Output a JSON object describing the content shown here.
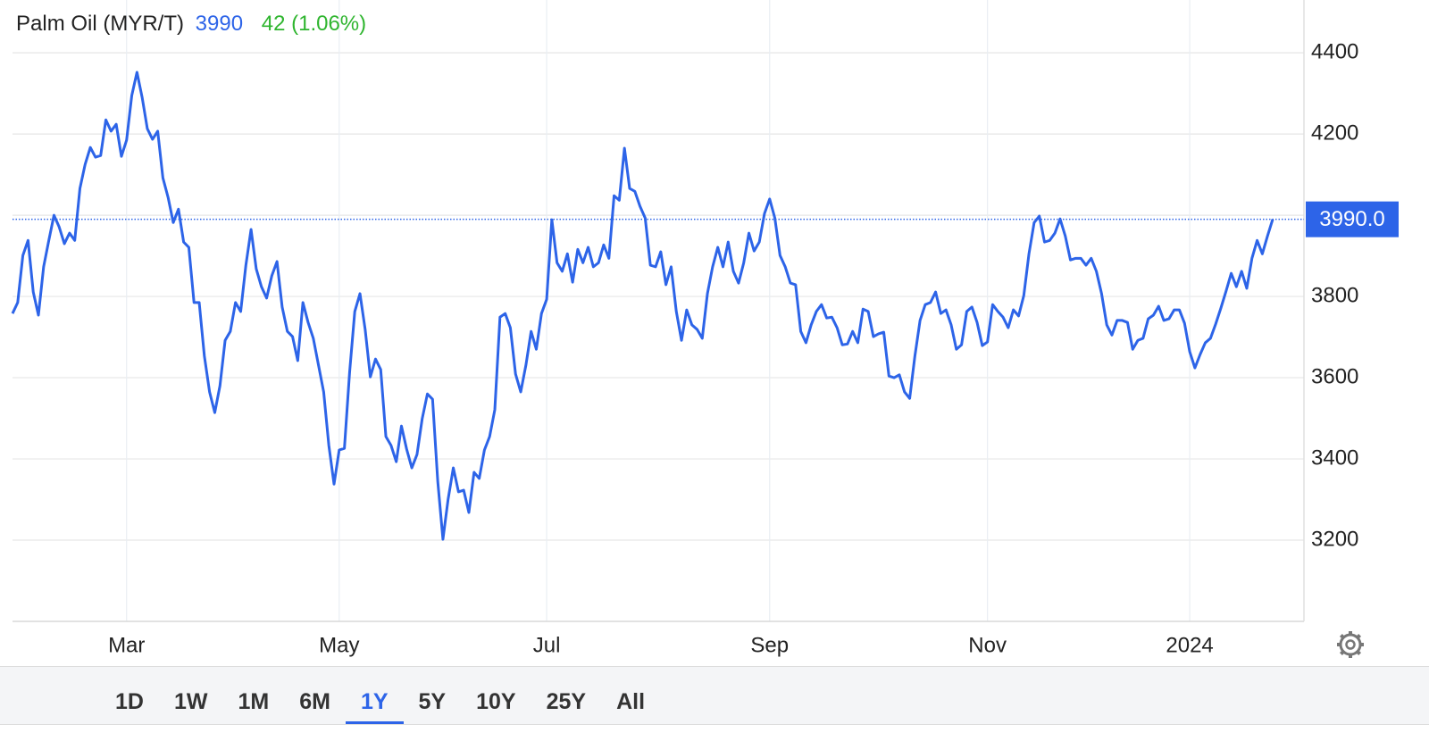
{
  "chart_data": {
    "type": "line",
    "title": "Palm Oil (MYR/T)",
    "price": "3990",
    "change": "42 (1.06%)",
    "color": "#2d64e8",
    "change_color": "#2fb52f",
    "grid": true,
    "ylim": [
      3000,
      4530
    ],
    "yticks": [
      3200,
      3400,
      3600,
      3800,
      4000,
      4200,
      4400
    ],
    "last_value": {
      "value": 3990,
      "label": "3990.0"
    },
    "categories": [
      null,
      null,
      null,
      null,
      null,
      null,
      null,
      null,
      null,
      null,
      null,
      null,
      null,
      null,
      null,
      null,
      null,
      null,
      null,
      null,
      null,
      null,
      "Mar",
      null,
      null,
      null,
      null,
      null,
      null,
      null,
      null,
      null,
      null,
      null,
      null,
      null,
      null,
      null,
      null,
      null,
      null,
      null,
      null,
      null,
      null,
      null,
      null,
      null,
      null,
      null,
      null,
      null,
      null,
      null,
      null,
      null,
      null,
      null,
      null,
      null,
      null,
      null,
      null,
      "May",
      null,
      null,
      null,
      null,
      null,
      null,
      null,
      null,
      null,
      null,
      null,
      null,
      null,
      null,
      null,
      null,
      null,
      null,
      null,
      null,
      null,
      null,
      null,
      null,
      null,
      null,
      null,
      null,
      null,
      null,
      null,
      null,
      null,
      null,
      null,
      null,
      null,
      null,
      null,
      "Jul",
      null,
      null,
      null,
      null,
      null,
      null,
      null,
      null,
      null,
      null,
      null,
      null,
      null,
      null,
      null,
      null,
      null,
      null,
      null,
      null,
      null,
      null,
      null,
      null,
      null,
      null,
      null,
      null,
      null,
      null,
      null,
      null,
      null,
      null,
      null,
      null,
      null,
      null,
      null,
      null,
      null,
      null,
      "Sep",
      null,
      null,
      null,
      null,
      null,
      null,
      null,
      null,
      null,
      null,
      null,
      null,
      null,
      null,
      null,
      null,
      null,
      null,
      null,
      null,
      null,
      null,
      null,
      null,
      null,
      null,
      null,
      null,
      null,
      null,
      null,
      null,
      null,
      null,
      null,
      null,
      null,
      null,
      null,
      null,
      null,
      "Nov",
      null,
      null,
      null,
      null,
      null,
      null,
      null,
      null,
      null,
      null,
      null,
      null,
      null,
      null,
      null,
      null,
      null,
      null,
      null,
      null,
      null,
      null,
      null,
      null,
      null,
      null,
      null,
      null,
      null,
      null,
      null,
      null,
      null,
      null,
      null,
      null,
      null,
      null,
      "2024",
      null,
      null,
      null,
      null,
      null,
      null,
      null,
      null,
      null,
      null,
      null,
      null,
      null,
      null,
      null,
      null
    ],
    "values": [
      3758,
      3785,
      3901,
      3938,
      3811,
      3754,
      3873,
      3938,
      4000,
      3971,
      3930,
      3956,
      3938,
      4066,
      4125,
      4167,
      4143,
      4147,
      4235,
      4207,
      4224,
      4145,
      4185,
      4295,
      4352,
      4290,
      4213,
      4187,
      4207,
      4092,
      4044,
      3982,
      4015,
      3934,
      3921,
      3785,
      3785,
      3653,
      3565,
      3514,
      3580,
      3692,
      3714,
      3785,
      3763,
      3877,
      3965,
      3868,
      3824,
      3796,
      3851,
      3886,
      3774,
      3714,
      3701,
      3642,
      3785,
      3736,
      3697,
      3631,
      3565,
      3433,
      3338,
      3422,
      3426,
      3613,
      3763,
      3807,
      3719,
      3602,
      3646,
      3620,
      3455,
      3433,
      3393,
      3481,
      3424,
      3378,
      3411,
      3499,
      3560,
      3547,
      3345,
      3202,
      3301,
      3378,
      3319,
      3323,
      3268,
      3367,
      3352,
      3422,
      3455,
      3521,
      3749,
      3758,
      3723,
      3609,
      3565,
      3631,
      3714,
      3670,
      3758,
      3793,
      3989,
      3883,
      3862,
      3905,
      3835,
      3916,
      3883,
      3921,
      3873,
      3883,
      3927,
      3894,
      4048,
      4037,
      4165,
      4066,
      4059,
      4022,
      3993,
      3877,
      3873,
      3910,
      3829,
      3873,
      3763,
      3692,
      3767,
      3730,
      3719,
      3697,
      3807,
      3873,
      3921,
      3873,
      3934,
      3862,
      3833,
      3883,
      3956,
      3912,
      3934,
      4004,
      4040,
      3993,
      3901,
      3873,
      3833,
      3829,
      3714,
      3686,
      3730,
      3763,
      3780,
      3747,
      3749,
      3723,
      3681,
      3683,
      3714,
      3686,
      3769,
      3763,
      3701,
      3708,
      3712,
      3604,
      3600,
      3607,
      3565,
      3549,
      3653,
      3741,
      3780,
      3785,
      3811,
      3758,
      3767,
      3730,
      3670,
      3681,
      3763,
      3774,
      3736,
      3679,
      3688,
      3780,
      3763,
      3749,
      3723,
      3767,
      3752,
      3802,
      3905,
      3982,
      3998,
      3934,
      3938,
      3956,
      3991,
      3949,
      3890,
      3894,
      3894,
      3877,
      3894,
      3862,
      3807,
      3730,
      3705,
      3741,
      3741,
      3736,
      3670,
      3692,
      3697,
      3745,
      3754,
      3776,
      3741,
      3745,
      3767,
      3767,
      3734,
      3664,
      3624,
      3657,
      3686,
      3697,
      3732,
      3771,
      3813,
      3857,
      3824,
      3862,
      3820,
      3894,
      3938,
      3905,
      3949,
      3990
    ],
    "range_buttons": [
      "1D",
      "1W",
      "1M",
      "6M",
      "1Y",
      "5Y",
      "10Y",
      "25Y",
      "All"
    ],
    "active_range": "1Y"
  }
}
